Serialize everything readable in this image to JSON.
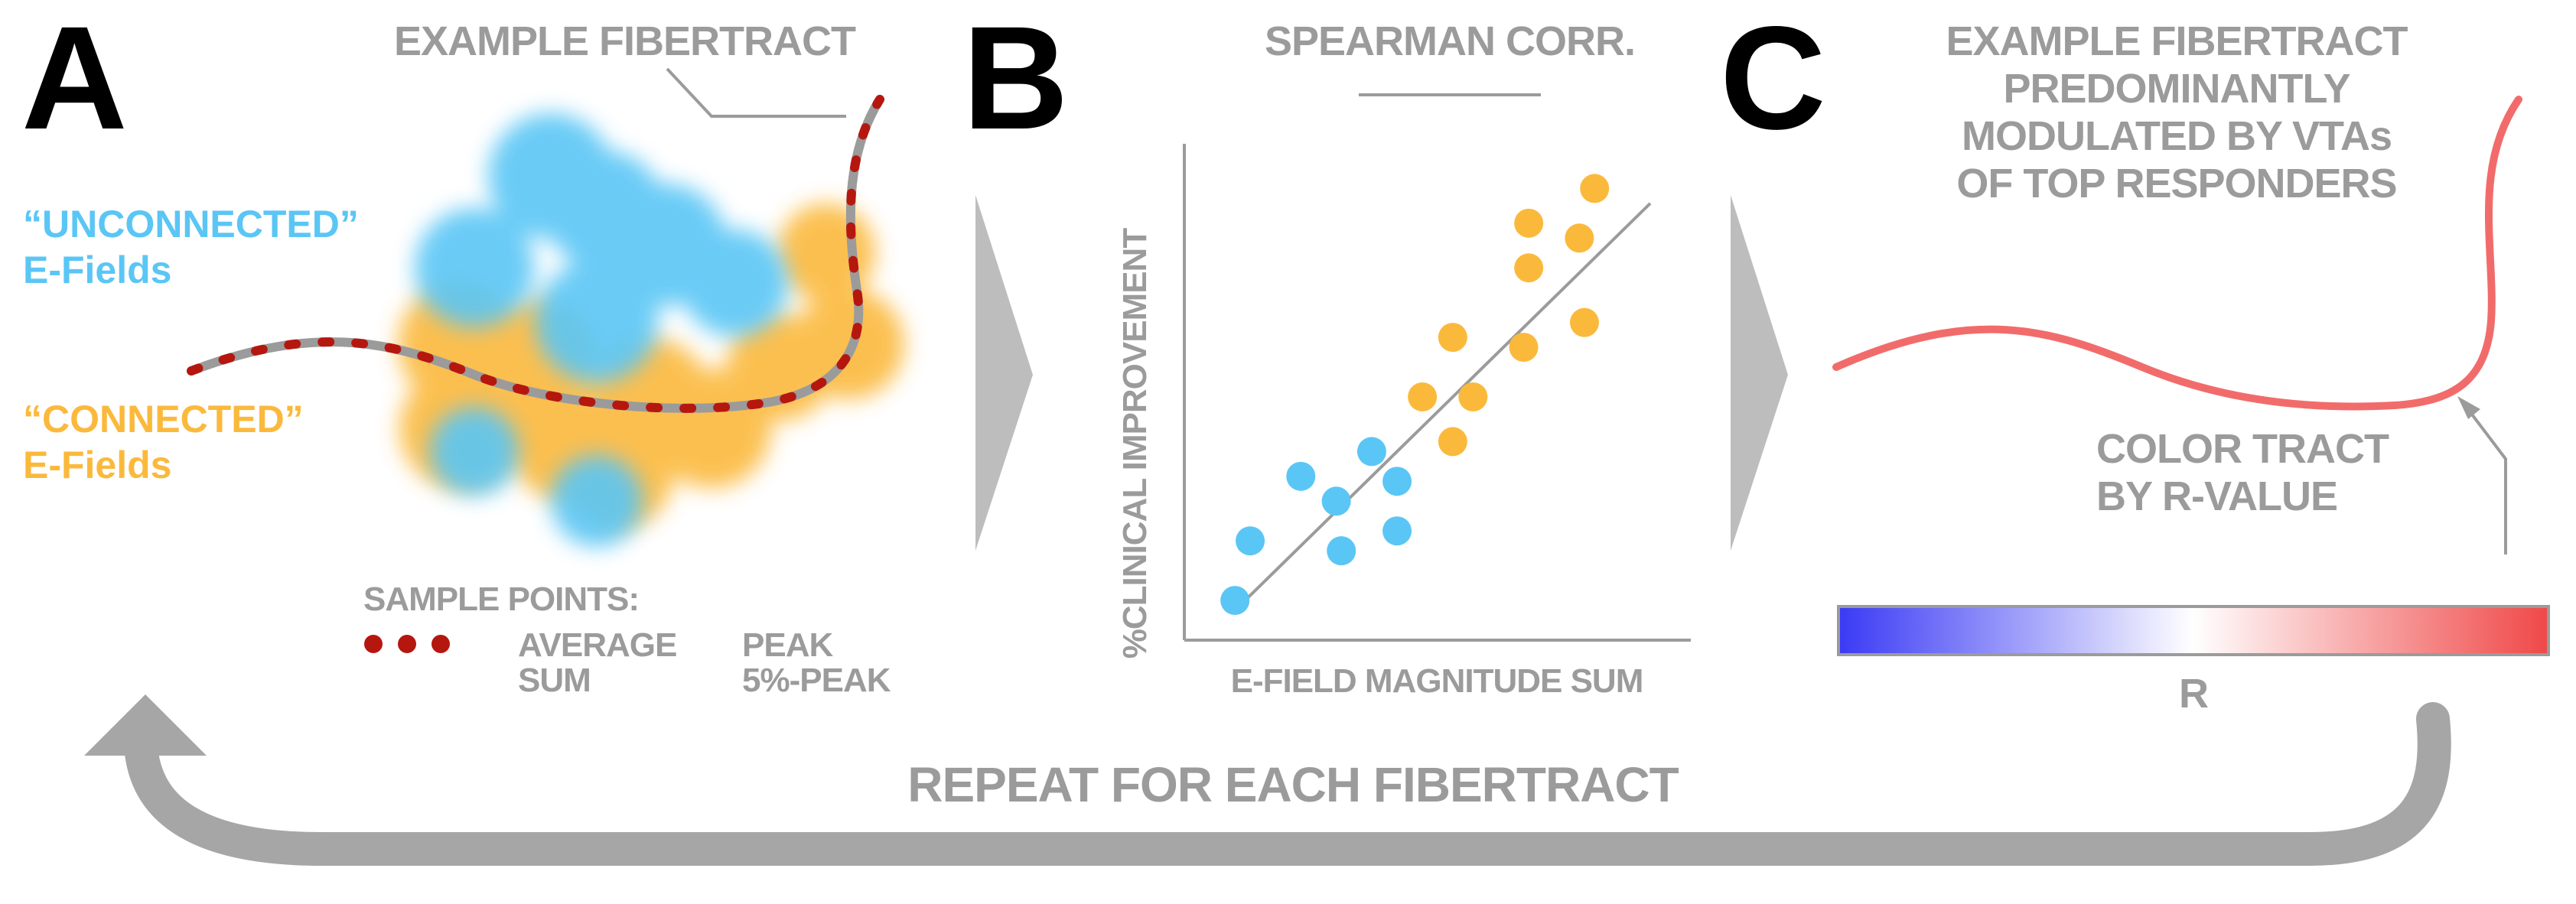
{
  "panels": {
    "a": {
      "letter": "A",
      "example_label": "EXAMPLE FIBERTRACT",
      "unconnected_line1": "“UNCONNECTED”",
      "unconnected_line2": "E-Fields",
      "connected_line1": "“CONNECTED”",
      "connected_line2": "E-Fields",
      "sample_points_label": "SAMPLE POINTS:",
      "method_average": "AVERAGE",
      "method_sum": "SUM",
      "method_peak": "PEAK",
      "method_5peak": "5%-PEAK"
    },
    "b": {
      "letter": "B",
      "title": "SPEARMAN CORR."
    },
    "c": {
      "letter": "C",
      "title_lines": [
        "EXAMPLE FIBERTRACT",
        "PREDOMINANTLY",
        "MODULATED BY VTAs",
        "OF TOP RESPONDERS"
      ],
      "color_label_line1": "COLOR TRACT",
      "color_label_line2": "BY R-VALUE",
      "colorbar_label": "R"
    }
  },
  "footer": {
    "repeat_label": "REPEAT FOR EACH FIBERTRACT"
  },
  "colors": {
    "unconnected": "#5ac6f5",
    "connected": "#fbb93c",
    "sample_point": "#b5170f",
    "tract_gray": "#9b9b9b",
    "tract_red": "#f26b6b",
    "arrow_gray": "#bdbdbd",
    "colorbar_low": "#3a3af5",
    "colorbar_mid": "#ffffff",
    "colorbar_high": "#f04848"
  },
  "chart_data": {
    "type": "scatter",
    "title": "SPEARMAN CORR.",
    "xlabel": "E-FIELD MAGNITUDE SUM",
    "ylabel": "%CLINICAL IMPROVEMENT",
    "grid": false,
    "legend": "none",
    "xlim": [
      0,
      100
    ],
    "ylim": [
      0,
      100
    ],
    "fit_line": {
      "x": [
        10,
        92
      ],
      "y": [
        6,
        88
      ]
    },
    "series": [
      {
        "color": "#5ac6f5",
        "points": [
          {
            "x": 10,
            "y": 8
          },
          {
            "x": 13,
            "y": 20
          },
          {
            "x": 23,
            "y": 33
          },
          {
            "x": 30,
            "y": 28
          },
          {
            "x": 31,
            "y": 18
          },
          {
            "x": 37,
            "y": 38
          },
          {
            "x": 42,
            "y": 32
          },
          {
            "x": 42,
            "y": 22
          }
        ]
      },
      {
        "color": "#fbb93c",
        "points": [
          {
            "x": 47,
            "y": 49
          },
          {
            "x": 53,
            "y": 40
          },
          {
            "x": 53,
            "y": 61
          },
          {
            "x": 57,
            "y": 49
          },
          {
            "x": 67,
            "y": 59
          },
          {
            "x": 68,
            "y": 75
          },
          {
            "x": 68,
            "y": 84
          },
          {
            "x": 78,
            "y": 81
          },
          {
            "x": 79,
            "y": 64
          },
          {
            "x": 81,
            "y": 91
          }
        ]
      }
    ]
  }
}
